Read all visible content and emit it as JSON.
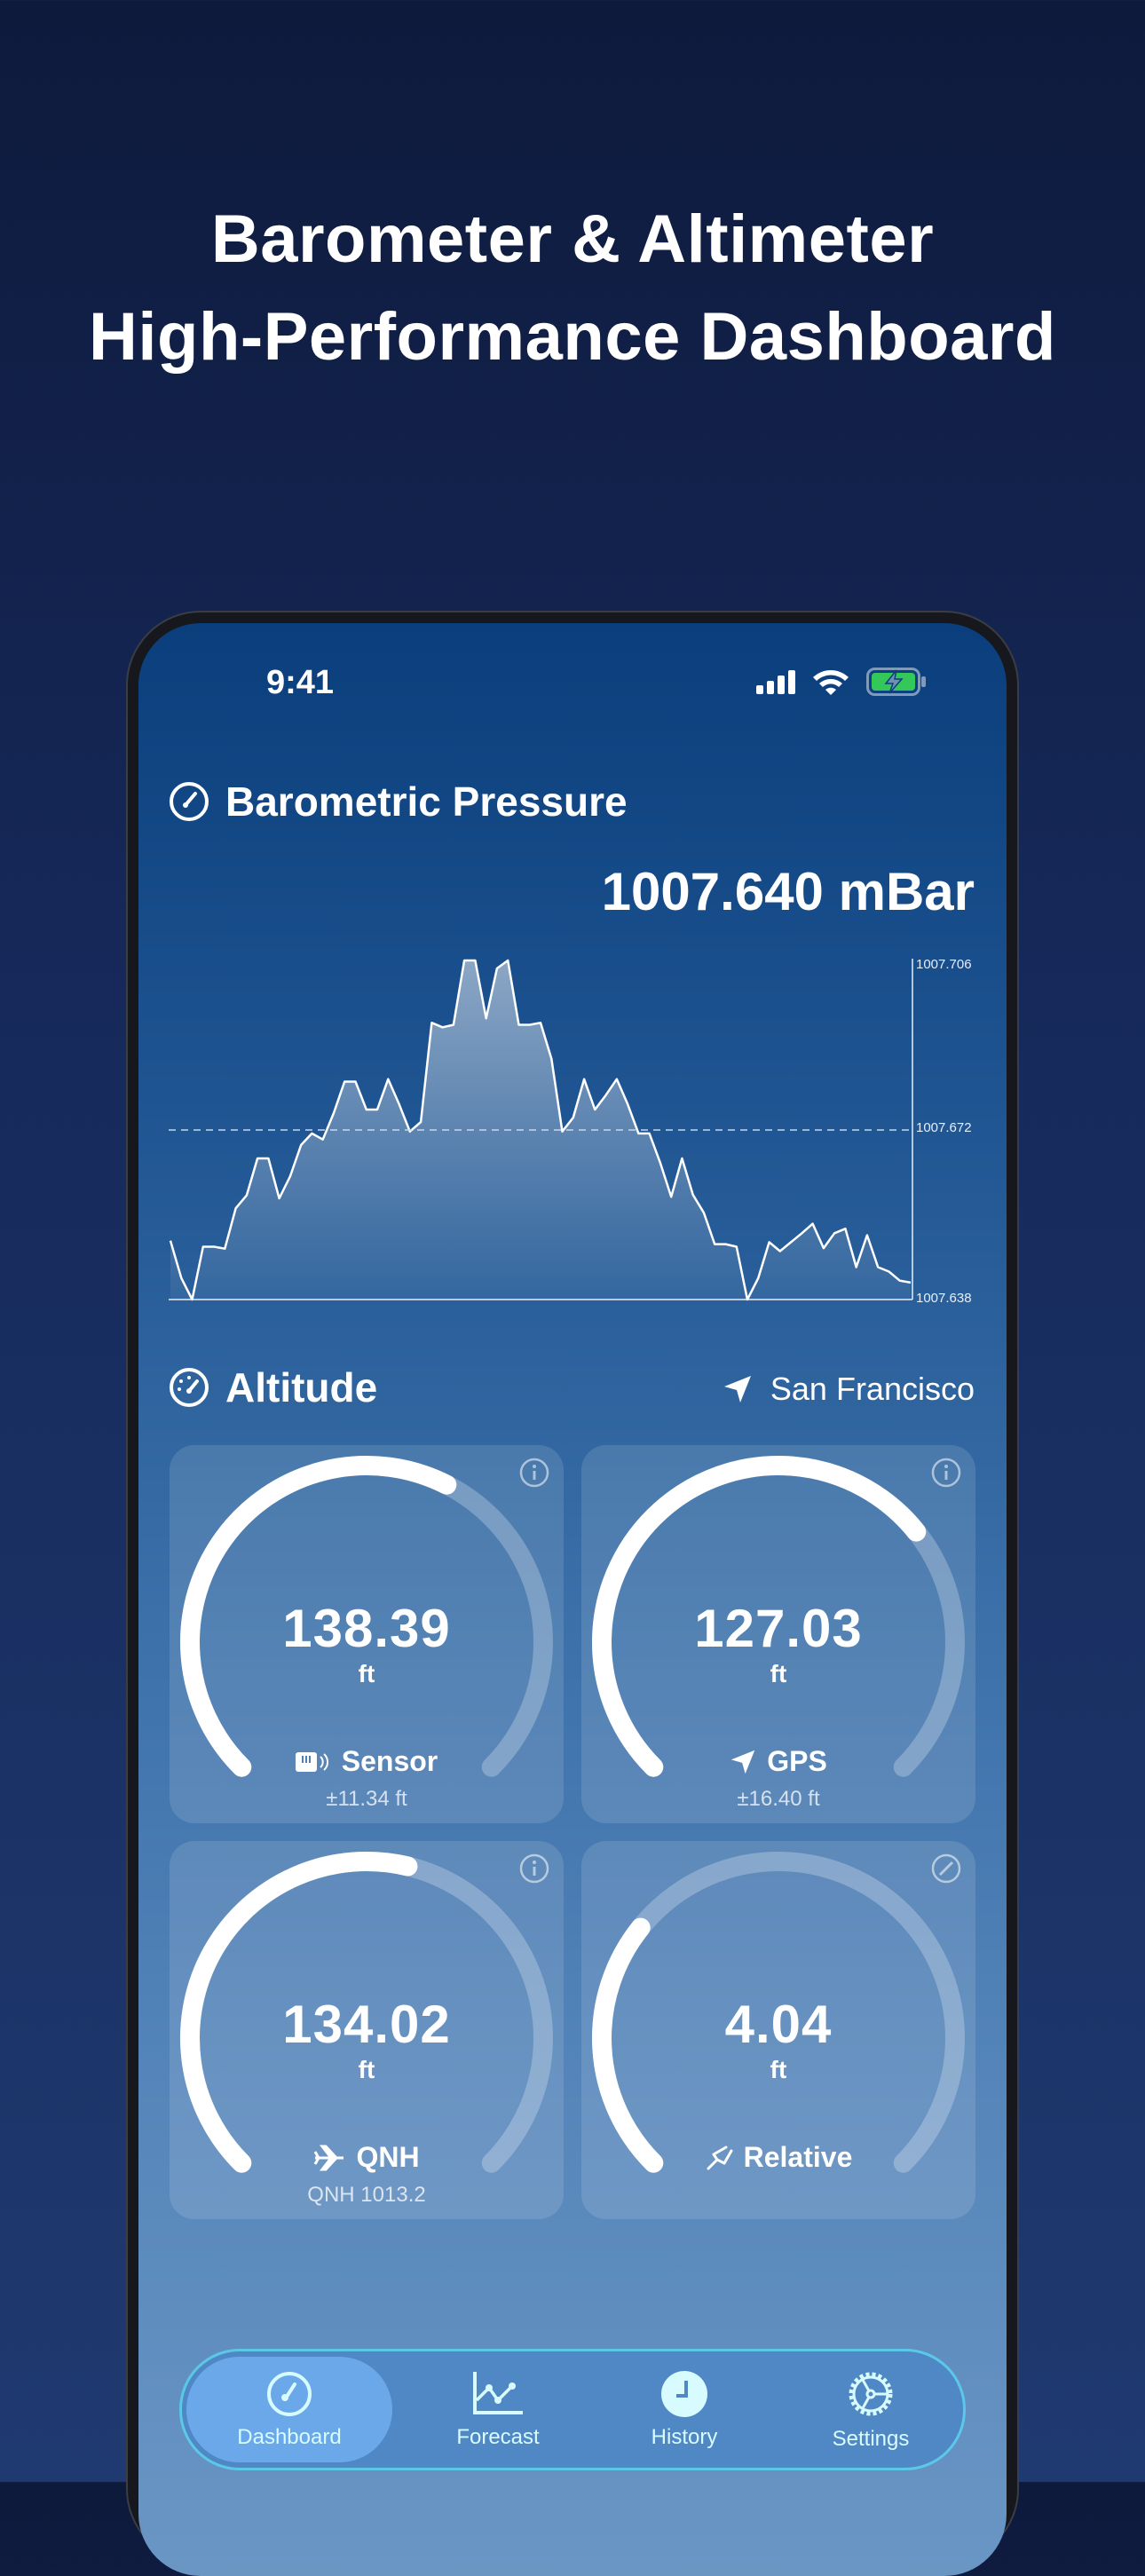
{
  "headline": {
    "line1": "Barometer & Altimeter",
    "line2": "High-Performance Dashboard"
  },
  "status": {
    "time": "9:41",
    "icons": [
      "cellular-signal-icon",
      "wifi-icon",
      "battery-charging-icon"
    ],
    "battery_color": "#34c759"
  },
  "pressure": {
    "title": "Barometric Pressure",
    "icon": "gauge-icon",
    "value": "1007.640 mBar"
  },
  "chart_data": {
    "type": "area",
    "ylim": [
      1007.638,
      1007.706
    ],
    "yticks": [
      "1007.706",
      "1007.672",
      "1007.638"
    ],
    "reference_line": 1007.672,
    "grid": false,
    "values": [
      1007.6498,
      1007.6423,
      1007.638,
      1007.6486,
      1007.6486,
      1007.6482,
      1007.6563,
      1007.6589,
      1007.6663,
      1007.6663,
      1007.6583,
      1007.6627,
      1007.669,
      1007.6713,
      1007.6701,
      1007.6754,
      1007.6817,
      1007.6817,
      1007.6761,
      1007.6761,
      1007.6822,
      1007.6772,
      1007.6717,
      1007.6736,
      1007.6935,
      1007.6926,
      1007.6931,
      1007.706,
      1007.706,
      1007.6944,
      1007.7044,
      1007.706,
      1007.6931,
      1007.6931,
      1007.6935,
      1007.6863,
      1007.6717,
      1007.6745,
      1007.6822,
      1007.6761,
      1007.679,
      1007.6822,
      1007.6772,
      1007.6713,
      1007.6713,
      1007.6654,
      1007.6586,
      1007.6663,
      1007.659,
      1007.6554,
      1007.6491,
      1007.6491,
      1007.6486,
      1007.638,
      1007.6423,
      1007.6495,
      1007.6477,
      1007.6495,
      1007.6513,
      1007.6532,
      1007.6483,
      1007.6513,
      1007.6522,
      1007.6445,
      1007.6509,
      1007.6445,
      1007.6436,
      1007.6418,
      1007.6414
    ]
  },
  "altitude": {
    "title": "Altitude",
    "icon": "speedometer-icon",
    "location": "San Francisco",
    "location_icon": "location-arrow-icon",
    "cards": [
      {
        "value": "138.39",
        "unit": "ft",
        "label": "Sensor",
        "sub": "±11.34 ft",
        "icon": "sensor-icon",
        "corner_icon": "info-icon",
        "fill": 0.6
      },
      {
        "value": "127.03",
        "unit": "ft",
        "label": "GPS",
        "sub": "±16.40 ft",
        "icon": "location-arrow-icon",
        "corner_icon": "info-icon",
        "fill": 0.69
      },
      {
        "value": "134.02",
        "unit": "ft",
        "label": "QNH",
        "sub": "QNH 1013.2",
        "icon": "airplane-icon",
        "corner_icon": "info-icon",
        "fill": 0.55
      },
      {
        "value": "4.04",
        "unit": "ft",
        "label": "Relative",
        "sub": "",
        "icon": "tuning-fork-icon",
        "corner_icon": "edit-icon",
        "fill": 0.31
      }
    ]
  },
  "tabs": [
    {
      "label": "Dashboard",
      "active": true
    },
    {
      "label": "Forecast"
    },
    {
      "label": "History"
    },
    {
      "label": "Settings"
    }
  ]
}
